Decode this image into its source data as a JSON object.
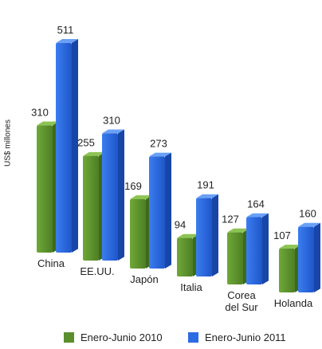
{
  "chart_data": {
    "type": "bar",
    "title": "",
    "xlabel": "",
    "ylabel": "US$ millones",
    "categories": [
      "China",
      "EE.UU.",
      "Japón",
      "Italia",
      "Corea\ndel Sur",
      "Holanda"
    ],
    "series": [
      {
        "name": "Enero-Junio 2010",
        "values": [
          310,
          255,
          169,
          94,
          127,
          107
        ],
        "color": "#5b8f2e"
      },
      {
        "name": "Enero-Junio 2011",
        "values": [
          511,
          310,
          273,
          191,
          164,
          160
        ],
        "color": "#2d6be3"
      }
    ],
    "ylim": [
      0,
      520
    ],
    "grid": false,
    "legend": "bottom"
  }
}
